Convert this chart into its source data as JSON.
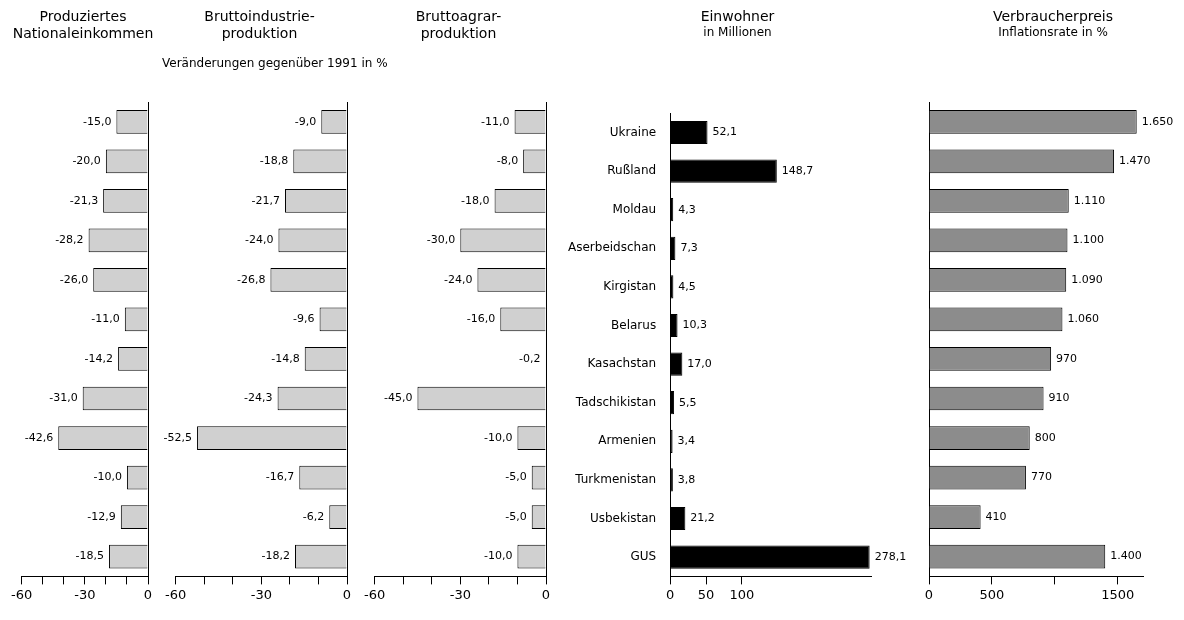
{
  "chart_data": [
    {
      "type": "bar",
      "orientation": "horizontal",
      "title": "Produziertes\nNationaleinkommen",
      "categories": [
        null,
        null,
        null,
        null,
        null,
        null,
        null,
        null,
        null,
        null,
        null,
        null
      ],
      "values": [
        -15.0,
        -20.0,
        -21.3,
        -28.2,
        -26.0,
        -11.0,
        -14.2,
        -31.0,
        -42.6,
        -10.0,
        -12.9,
        -18.5
      ],
      "value_labels": [
        "-15,0",
        "-20,0",
        "-21,3",
        "-28,2",
        "-26,0",
        "-11,0",
        "-14,2",
        "-31,0",
        "-42,6",
        "-10,0",
        "-12,9",
        "-18,5"
      ],
      "color": "#d0d0d0",
      "xlim": [
        -60,
        0
      ],
      "xticks": [
        -60,
        {
          "value": -50,
          "label": null
        },
        {
          "value": -40,
          "label": null
        },
        -30,
        {
          "value": -20,
          "label": null
        },
        {
          "value": -10,
          "label": null
        },
        0
      ],
      "tick_labels": "x",
      "grid": false,
      "legend": false
    },
    {
      "type": "bar",
      "orientation": "horizontal",
      "title": "Bruttoindustrie-\nproduktion",
      "subtitle": "Veränderungen gegenüber 1991 in %",
      "categories": [
        null,
        null,
        null,
        null,
        null,
        null,
        null,
        null,
        null,
        null,
        null,
        null
      ],
      "values": [
        -9.0,
        -18.8,
        -21.7,
        -24.0,
        -26.8,
        -9.6,
        -14.8,
        -24.3,
        -52.5,
        -16.7,
        -6.2,
        -18.2
      ],
      "value_labels": [
        "-9,0",
        "-18,8",
        "-21,7",
        "-24,0",
        "-26,8",
        "-9,6",
        "-14,8",
        "-24,3",
        "-52,5",
        "-16,7",
        "-6,2",
        "-18,2"
      ],
      "color": "#d0d0d0",
      "xlim": [
        -60,
        0
      ],
      "xticks": [
        -60,
        {
          "value": -50,
          "label": null
        },
        {
          "value": -40,
          "label": null
        },
        -30,
        {
          "value": -20,
          "label": null
        },
        {
          "value": -10,
          "label": null
        },
        0
      ],
      "tick_labels": "x",
      "grid": false,
      "legend": false
    },
    {
      "type": "bar",
      "orientation": "horizontal",
      "title": "Bruttoagrar-\nproduktion",
      "categories": [
        null,
        null,
        null,
        null,
        null,
        null,
        null,
        null,
        null,
        null,
        null,
        null
      ],
      "values": [
        -11.0,
        -8.0,
        -18.0,
        -30.0,
        -24.0,
        -16.0,
        -0.2,
        -45.0,
        -10.0,
        -5.0,
        -5.0,
        -10.0
      ],
      "value_labels": [
        "-11,0",
        "-8,0",
        "-18,0",
        "-30,0",
        "-24,0",
        "-16,0",
        "-0,2",
        "-45,0",
        "-10,0",
        "-5,0",
        "-5,0",
        "-10,0"
      ],
      "color": "#d0d0d0",
      "xlim": [
        -60,
        0
      ],
      "xticks": [
        -60,
        {
          "value": -50,
          "label": null
        },
        {
          "value": -40,
          "label": null
        },
        -30,
        {
          "value": -20,
          "label": null
        },
        {
          "value": -10,
          "label": null
        },
        0
      ],
      "tick_labels": "x",
      "grid": false,
      "legend": false
    },
    {
      "type": "bar",
      "orientation": "horizontal",
      "title": "Einwohner",
      "subtitle": "in Millionen",
      "categories": [
        "Ukraine",
        "Rußland",
        "Moldau",
        "Aserbeidschan",
        "Kirgistan",
        "Belarus",
        "Kasachstan",
        "Tadschikistan",
        "Armenien",
        "Turkmenistan",
        "Usbekistan",
        "GUS"
      ],
      "values": [
        52.1,
        148.7,
        4.3,
        7.3,
        4.5,
        10.3,
        17.0,
        5.5,
        3.4,
        3.8,
        21.2,
        278.1
      ],
      "value_labels": [
        "52,1",
        "148,7",
        "4,3",
        "7,3",
        "4,5",
        "10,3",
        "17,0",
        "5,5",
        "3,4",
        "3,8",
        "21,2",
        "278,1"
      ],
      "color": "#000000",
      "xlim": [
        0,
        280
      ],
      "xticks": [
        0,
        50,
        100
      ],
      "grid": false,
      "legend": false
    },
    {
      "type": "bar",
      "orientation": "horizontal",
      "title": "Verbraucherpreis",
      "subtitle": "Inflationsrate in %",
      "categories": [
        null,
        null,
        null,
        null,
        null,
        null,
        null,
        null,
        null,
        null,
        null,
        null
      ],
      "values": [
        1650,
        1470,
        1110,
        1100,
        1090,
        1060,
        970,
        910,
        800,
        770,
        410,
        1400
      ],
      "value_labels": [
        "1.650",
        "1.470",
        "1.110",
        "1.100",
        "1.090",
        "1.060",
        "970",
        "910",
        "800",
        "770",
        "410",
        "1.400"
      ],
      "color": "#8c8c8c",
      "xlim": [
        0,
        1700
      ],
      "xticks": [
        0,
        500,
        {
          "value": 1000,
          "label": null
        },
        1500
      ],
      "tick_labels": "x",
      "grid": false,
      "legend": false
    }
  ]
}
